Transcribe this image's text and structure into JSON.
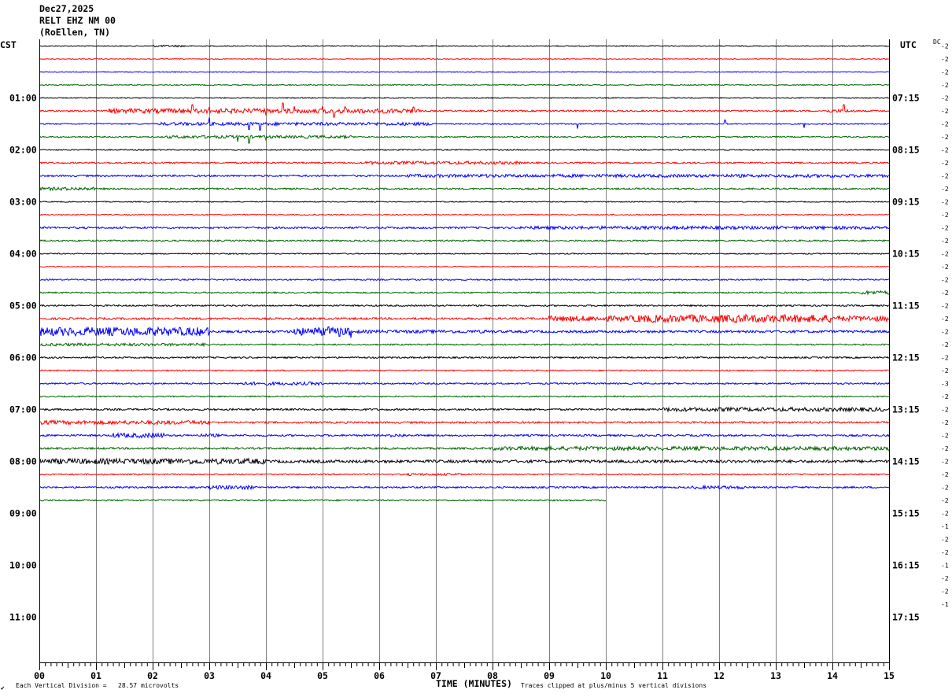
{
  "header": {
    "date": "Dec27,2025",
    "station": "RELT EHZ NM 00",
    "location": "(RoEllen, TN)"
  },
  "left_axis_title": "CST",
  "right_axis_title": "UTC",
  "dc_label": "DC",
  "footer": {
    "scale_note": "Each Vertical Division =   28.57 microvolts",
    "xlabel": "TIME (MINUTES)",
    "clip_note": "Traces clipped at plus/minus 5 vertical divisions",
    "corner_mark": "✔"
  },
  "colors": {
    "trace_cycle": [
      "#000000",
      "#ff0000",
      "#0000ff",
      "#006400"
    ],
    "grid": "#808080",
    "frame": "#000000"
  },
  "chart_data": {
    "type": "line",
    "title": "",
    "xlabel": "TIME (MINUTES)",
    "ylabel": "",
    "xlim": [
      0,
      15
    ],
    "x_ticks": [
      "00",
      "01",
      "02",
      "03",
      "04",
      "05",
      "06",
      "07",
      "08",
      "09",
      "10",
      "11",
      "12",
      "13",
      "14",
      "15"
    ],
    "left_hour_labels": [
      "01:00",
      "02:00",
      "03:00",
      "04:00",
      "05:00",
      "06:00",
      "07:00",
      "08:00",
      "09:00",
      "10:00",
      "11:00"
    ],
    "right_hour_labels": [
      "07:15",
      "08:15",
      "09:15",
      "10:15",
      "11:15",
      "12:15",
      "13:15",
      "14:15",
      "15:15",
      "16:15",
      "17:15"
    ],
    "rows_per_hour": 4,
    "total_slots": 48,
    "trace_count": 36,
    "last_trace_end_minute": 10,
    "dc_offsets": [
      "-2",
      "-2",
      "-2",
      "-2",
      "-2",
      "-2",
      "-2",
      "-2",
      "-2",
      "-2",
      "-2",
      "-2",
      "-2",
      "-2",
      "-2",
      "-2",
      "-2",
      "-2",
      "-2",
      "-2",
      "-2",
      "-2",
      "-2",
      "-2",
      "-2",
      "-2",
      "-3",
      "-2",
      "-2",
      "-2",
      "-2",
      "-2",
      "-2",
      "-2",
      "-2",
      "-2",
      "-2",
      "-1",
      "-2",
      "-2",
      "-1",
      "-2",
      "-2",
      "-1"
    ],
    "trace_activity": [
      {
        "base": 0.6,
        "bursts": [
          [
            2.0,
            2.6,
            1.2
          ]
        ]
      },
      {
        "base": 0.5,
        "bursts": []
      },
      {
        "base": 0.5,
        "bursts": []
      },
      {
        "base": 0.6,
        "bursts": []
      },
      {
        "base": 0.6,
        "bursts": []
      },
      {
        "base": 1.0,
        "bursts": [
          [
            1.2,
            6.7,
            3.0
          ],
          [
            13.9,
            14.4,
            2.0
          ]
        ],
        "spikes": [
          [
            2.7,
            8
          ],
          [
            3.0,
            5
          ],
          [
            4.0,
            -5
          ],
          [
            4.3,
            10
          ],
          [
            4.5,
            6
          ],
          [
            5.0,
            6
          ],
          [
            5.2,
            -8
          ],
          [
            5.4,
            5
          ],
          [
            6.6,
            5
          ],
          [
            14.2,
            8
          ]
        ]
      },
      {
        "base": 0.8,
        "bursts": [
          [
            2.1,
            7.0,
            2.0
          ]
        ],
        "spikes": [
          [
            3.0,
            8
          ],
          [
            3.7,
            -7
          ],
          [
            3.9,
            -8
          ],
          [
            9.5,
            -6
          ],
          [
            12.1,
            5
          ],
          [
            13.5,
            -5
          ]
        ]
      },
      {
        "base": 0.8,
        "bursts": [
          [
            2.2,
            5.5,
            1.8
          ]
        ],
        "spikes": [
          [
            3.5,
            -6
          ],
          [
            3.7,
            -8
          ],
          [
            4.0,
            -4
          ]
        ]
      },
      {
        "base": 0.7,
        "bursts": []
      },
      {
        "base": 1.0,
        "bursts": [
          [
            5.7,
            8.5,
            2.0
          ]
        ]
      },
      {
        "base": 1.1,
        "bursts": [
          [
            6.5,
            15.0,
            2.0
          ]
        ]
      },
      {
        "base": 1.0,
        "bursts": [
          [
            0.0,
            1.0,
            2.0
          ]
        ]
      },
      {
        "base": 0.6,
        "bursts": []
      },
      {
        "base": 0.6,
        "bursts": []
      },
      {
        "base": 1.2,
        "bursts": [
          [
            8.5,
            15.0,
            2.0
          ]
        ]
      },
      {
        "base": 1.0,
        "bursts": []
      },
      {
        "base": 0.7,
        "bursts": []
      },
      {
        "base": 0.5,
        "bursts": []
      },
      {
        "base": 0.9,
        "bursts": []
      },
      {
        "base": 0.9,
        "bursts": [
          [
            14.5,
            15.0,
            2.5
          ]
        ]
      },
      {
        "base": 1.0,
        "bursts": []
      },
      {
        "base": 1.3,
        "bursts": [
          [
            9.0,
            15.0,
            3.5
          ],
          [
            10.5,
            14.0,
            5.0
          ]
        ]
      },
      {
        "base": 1.5,
        "bursts": [
          [
            0.0,
            3.0,
            5.5
          ],
          [
            4.5,
            5.5,
            5.0
          ],
          [
            5.5,
            8.0,
            2.0
          ]
        ],
        "spikes": [
          [
            5.1,
            6
          ],
          [
            5.3,
            -6
          ],
          [
            5.5,
            -8
          ]
        ]
      },
      {
        "base": 0.9,
        "bursts": [
          [
            0.0,
            3.0,
            1.8
          ]
        ]
      },
      {
        "base": 1.0,
        "bursts": []
      },
      {
        "base": 0.8,
        "bursts": []
      },
      {
        "base": 1.0,
        "bursts": [
          [
            3.5,
            5.0,
            2.0
          ]
        ]
      },
      {
        "base": 0.8,
        "bursts": []
      },
      {
        "base": 1.2,
        "bursts": [
          [
            11.0,
            15.0,
            2.5
          ]
        ]
      },
      {
        "base": 1.2,
        "bursts": [
          [
            0.0,
            3.0,
            2.5
          ]
        ]
      },
      {
        "base": 1.2,
        "bursts": [
          [
            1.3,
            2.2,
            3.0
          ],
          [
            2.8,
            3.2,
            2.0
          ],
          [
            6.2,
            6.5,
            2.0
          ]
        ]
      },
      {
        "base": 1.2,
        "bursts": [
          [
            8.0,
            15.0,
            2.5
          ]
        ]
      },
      {
        "base": 1.8,
        "bursts": [
          [
            0.0,
            4.0,
            3.5
          ]
        ]
      },
      {
        "base": 0.8,
        "bursts": [
          [
            6.5,
            7.5,
            1.5
          ]
        ]
      },
      {
        "base": 1.1,
        "bursts": [
          [
            3.0,
            3.8,
            2.5
          ],
          [
            11.5,
            12.5,
            2.0
          ]
        ]
      },
      {
        "base": 0.9,
        "bursts": []
      }
    ]
  }
}
